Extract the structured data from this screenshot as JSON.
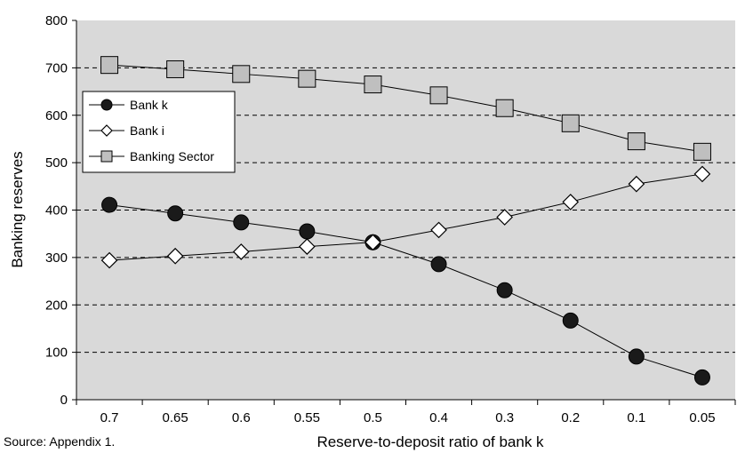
{
  "chart_data": {
    "type": "line",
    "title": "",
    "xlabel": "Reserve-to-deposit ratio of bank k",
    "ylabel": "Banking reserves",
    "categories": [
      "0.7",
      "0.65",
      "0.6",
      "0.55",
      "0.5",
      "0.4",
      "0.3",
      "0.2",
      "0.1",
      "0.05"
    ],
    "ylim": [
      0,
      800
    ],
    "yticks": [
      "0",
      "100",
      "200",
      "300",
      "400",
      "500",
      "600",
      "700",
      "800"
    ],
    "grid": "horizontal dashed",
    "legend_position": "upper-left inside plot",
    "plot_background": "#d9d9d9",
    "series": [
      {
        "name": "Bank k",
        "marker": "circle-filled",
        "color": "#1a1a1a",
        "values": [
          411,
          393,
          374,
          355,
          332,
          286,
          231,
          167,
          91,
          47
        ]
      },
      {
        "name": "Bank i",
        "marker": "diamond-open",
        "color": "#ffffff",
        "values": [
          294,
          303,
          312,
          323,
          332,
          358,
          385,
          417,
          455,
          476
        ]
      },
      {
        "name": "Banking Sector",
        "marker": "square-gray",
        "color": "#bfbfbf",
        "values": [
          706,
          697,
          687,
          677,
          665,
          642,
          615,
          583,
          545,
          523
        ]
      }
    ]
  },
  "source_note": "Source: Appendix 1."
}
